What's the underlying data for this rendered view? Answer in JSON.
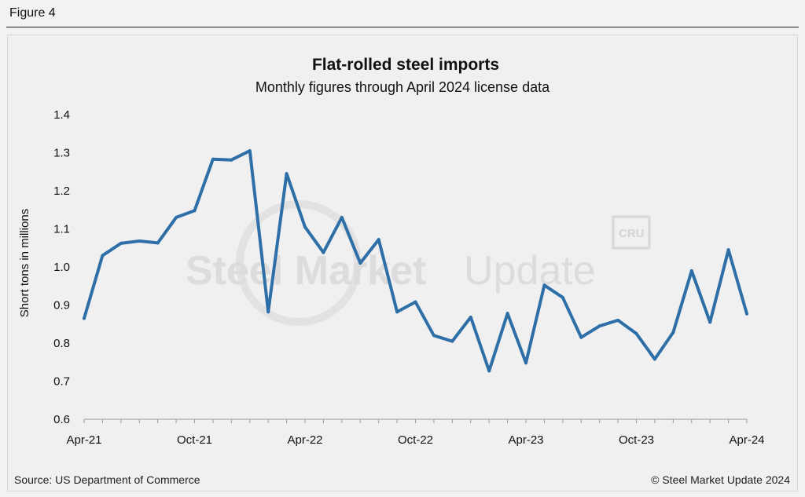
{
  "figure_label": "Figure 4",
  "footer": {
    "source": "Source: US Department of Commerce",
    "copyright": "© Steel Market Update 2024"
  },
  "watermark": {
    "brand_bold": "Steel Market",
    "brand_light": "Update",
    "cru": "CRU"
  },
  "colors": {
    "line": "#2f6fa7",
    "background": "#f2f2f2",
    "axis": "#999999"
  },
  "chart_data": {
    "type": "line",
    "title": "Flat-rolled steel imports",
    "subtitle": "Monthly figures through April 2024 license data",
    "xlabel": "",
    "ylabel": "Short tons in millions",
    "ylim": [
      0.6,
      1.4
    ],
    "yticks": [
      "0.6",
      "0.7",
      "0.8",
      "0.9",
      "1.0",
      "1.1",
      "1.2",
      "1.3",
      "1.4"
    ],
    "grid": false,
    "x": [
      "Apr-21",
      "May-21",
      "Jun-21",
      "Jul-21",
      "Aug-21",
      "Sep-21",
      "Oct-21",
      "Nov-21",
      "Dec-21",
      "Jan-22",
      "Feb-22",
      "Mar-22",
      "Apr-22",
      "May-22",
      "Jun-22",
      "Jul-22",
      "Aug-22",
      "Sep-22",
      "Oct-22",
      "Nov-22",
      "Dec-22",
      "Jan-23",
      "Feb-23",
      "Mar-23",
      "Apr-23",
      "May-23",
      "Jun-23",
      "Jul-23",
      "Aug-23",
      "Sep-23",
      "Oct-23",
      "Nov-23",
      "Dec-23",
      "Jan-24",
      "Feb-24",
      "Mar-24",
      "Apr-24"
    ],
    "xtick_labels": [
      {
        "index": 0,
        "label": "Apr-21"
      },
      {
        "index": 6,
        "label": "Oct-21"
      },
      {
        "index": 12,
        "label": "Apr-22"
      },
      {
        "index": 18,
        "label": "Oct-22"
      },
      {
        "index": 24,
        "label": "Apr-23"
      },
      {
        "index": 30,
        "label": "Oct-23"
      },
      {
        "index": 36,
        "label": "Apr-24"
      }
    ],
    "series": [
      {
        "name": "Flat-rolled steel imports",
        "values": [
          0.865,
          1.03,
          1.062,
          1.068,
          1.063,
          1.13,
          1.148,
          1.283,
          1.281,
          1.305,
          0.882,
          1.245,
          1.105,
          1.038,
          1.13,
          1.01,
          1.072,
          0.882,
          0.908,
          0.82,
          0.805,
          0.868,
          0.727,
          0.878,
          0.748,
          0.952,
          0.92,
          0.815,
          0.845,
          0.86,
          0.825,
          0.758,
          0.828,
          0.99,
          0.855,
          1.045,
          0.877
        ]
      }
    ]
  }
}
